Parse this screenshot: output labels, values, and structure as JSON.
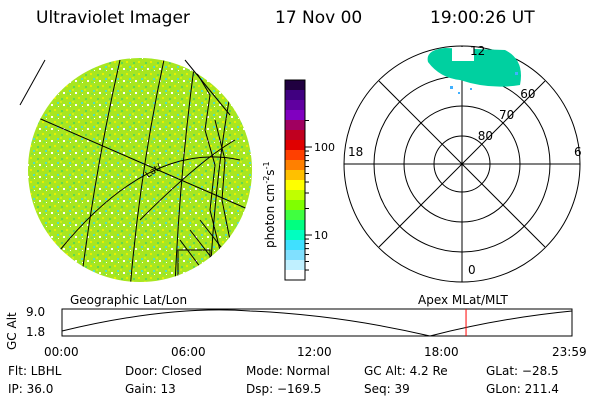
{
  "header": {
    "instrument": "Ultraviolet Imager",
    "date": "17 Nov 00",
    "time": "19:00:26 UT"
  },
  "colors": {
    "aurora_main": "#00d0a0",
    "aurora_spots": "#40b0ff",
    "alt_marker": "#ff0000",
    "line": "#000000"
  },
  "globe": {
    "label": "Geographic Lat/Lon",
    "annotation": "Lat/"
  },
  "colorbar": {
    "unit_base": "photon cm",
    "unit_exp1": "-2",
    "unit_mid": "s",
    "unit_exp2": "-1",
    "ticks": [
      {
        "label": "100",
        "value": 100
      },
      {
        "label": "10",
        "value": 10
      }
    ],
    "colors": [
      "#200040",
      "#400080",
      "#6000a0",
      "#8000c0",
      "#a00060",
      "#c00020",
      "#e00000",
      "#ff4000",
      "#ff8000",
      "#ffc000",
      "#ffff00",
      "#c0ff00",
      "#80ff00",
      "#40ff40",
      "#00ff80",
      "#00ffc0",
      "#40e0ff",
      "#80e0ff",
      "#c0f0ff",
      "#ffffff"
    ]
  },
  "polar": {
    "label": "Apex MLat/MLT",
    "mlt_labels": [
      {
        "label": "12",
        "angle": 0
      },
      {
        "label": "6",
        "angle": 90
      },
      {
        "label": "0",
        "angle": 180
      },
      {
        "label": "18",
        "angle": 270
      }
    ],
    "lat_rings": [
      {
        "label": "60",
        "lat": 60
      },
      {
        "label": "70",
        "lat": 70
      },
      {
        "label": "80",
        "lat": 80
      }
    ]
  },
  "altitude_plot": {
    "ylabel": "GC Alt",
    "yticks": [
      "9.0",
      "1.8"
    ],
    "xticks": [
      "00:00",
      "06:00",
      "12:00",
      "18:00",
      "23:59"
    ],
    "marker_time": "19:00"
  },
  "status": {
    "flt": "Flt: LBHL",
    "ip": "IP: 36.0",
    "door": "Door: Closed",
    "gain": "Gain: 13",
    "mode": "Mode: Normal",
    "dsp": "Dsp: −169.5",
    "gcalt": "GC Alt: 4.2 Re",
    "seq": "Seq: 39",
    "glat": "GLat: −28.5",
    "glon": "GLon: 211.4"
  }
}
